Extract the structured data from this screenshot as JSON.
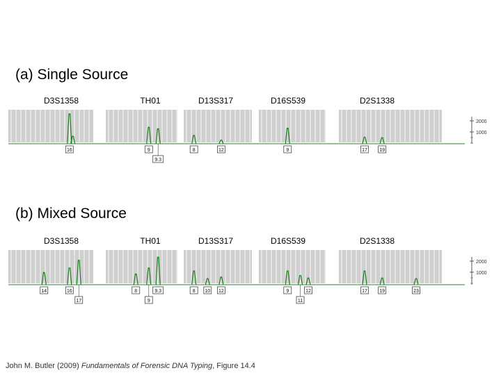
{
  "footer": {
    "author": "John M. Butler (2009) ",
    "book": "Fundamentals of Forensic DNA Typing",
    "fig": ", Figure 14.4"
  },
  "chart_data": [
    {
      "type": "electropherogram",
      "title": "(a) Single Source",
      "y_ticks": [
        "2000",
        "1000"
      ],
      "loci": [
        {
          "name": "D3S1358",
          "genotype": "16, 16",
          "peaks": [
            {
              "x": 0.72,
              "h": 1.0
            },
            {
              "x": 0.76,
              "h": 0.25
            }
          ],
          "labels": [
            {
              "text": "16",
              "x": 0.72,
              "row": 0
            }
          ]
        },
        {
          "name": "TH01",
          "genotype": "9, 9.3",
          "peaks": [
            {
              "x": 0.6,
              "h": 0.55
            },
            {
              "x": 0.73,
              "h": 0.5
            }
          ],
          "labels": [
            {
              "text": "9",
              "x": 0.6,
              "row": 0
            },
            {
              "text": "9.3",
              "x": 0.73,
              "row": 1
            }
          ]
        },
        {
          "name": "D13S317",
          "genotype": "8, 12",
          "peaks": [
            {
              "x": 0.15,
              "h": 0.28
            },
            {
              "x": 0.55,
              "h": 0.12
            }
          ],
          "labels": [
            {
              "text": "8",
              "x": 0.15,
              "row": 0
            },
            {
              "text": "12",
              "x": 0.55,
              "row": 0
            }
          ]
        },
        {
          "name": "D16S539",
          "genotype": "9, 9",
          "peaks": [
            {
              "x": 0.43,
              "h": 0.52
            }
          ],
          "labels": [
            {
              "text": "9",
              "x": 0.43,
              "row": 0
            }
          ]
        },
        {
          "name": "D2S1338",
          "genotype": "17, 19",
          "peaks": [
            {
              "x": 0.25,
              "h": 0.22
            },
            {
              "x": 0.42,
              "h": 0.2
            }
          ],
          "labels": [
            {
              "text": "17",
              "x": 0.25,
              "row": 0
            },
            {
              "text": "19",
              "x": 0.42,
              "row": 0
            }
          ]
        }
      ]
    },
    {
      "type": "electropherogram",
      "title": "(b) Mixed Source",
      "y_ticks": [
        "2000",
        "1000"
      ],
      "loci": [
        {
          "name": "D3S1358",
          "genotype": "",
          "peaks": [
            {
              "x": 0.42,
              "h": 0.4
            },
            {
              "x": 0.72,
              "h": 0.55
            },
            {
              "x": 0.83,
              "h": 0.8
            }
          ],
          "labels": [
            {
              "text": "14",
              "x": 0.42,
              "row": 0
            },
            {
              "text": "16",
              "x": 0.72,
              "row": 0
            },
            {
              "text": "17",
              "x": 0.83,
              "row": 1
            }
          ]
        },
        {
          "name": "TH01",
          "genotype": "",
          "peaks": [
            {
              "x": 0.42,
              "h": 0.35
            },
            {
              "x": 0.6,
              "h": 0.55
            },
            {
              "x": 0.73,
              "h": 0.9
            }
          ],
          "labels": [
            {
              "text": "8",
              "x": 0.42,
              "row": 0
            },
            {
              "text": "9.3",
              "x": 0.73,
              "row": 0
            },
            {
              "text": "9",
              "x": 0.6,
              "row": 1
            }
          ]
        },
        {
          "name": "D13S317",
          "genotype": "",
          "peaks": [
            {
              "x": 0.15,
              "h": 0.45
            },
            {
              "x": 0.35,
              "h": 0.2
            },
            {
              "x": 0.55,
              "h": 0.25
            }
          ],
          "labels": [
            {
              "text": "8",
              "x": 0.15,
              "row": 0
            },
            {
              "text": "10",
              "x": 0.35,
              "row": 0
            },
            {
              "text": "12",
              "x": 0.55,
              "row": 0
            }
          ]
        },
        {
          "name": "D16S539",
          "genotype": "",
          "peaks": [
            {
              "x": 0.43,
              "h": 0.45
            },
            {
              "x": 0.62,
              "h": 0.3
            },
            {
              "x": 0.74,
              "h": 0.22
            }
          ],
          "labels": [
            {
              "text": "9",
              "x": 0.43,
              "row": 0
            },
            {
              "text": "12",
              "x": 0.74,
              "row": 0
            },
            {
              "text": "11",
              "x": 0.62,
              "row": 1
            }
          ]
        },
        {
          "name": "D2S1338",
          "genotype": "",
          "peaks": [
            {
              "x": 0.25,
              "h": 0.45
            },
            {
              "x": 0.42,
              "h": 0.22
            },
            {
              "x": 0.75,
              "h": 0.2
            }
          ],
          "labels": [
            {
              "text": "17",
              "x": 0.25,
              "row": 0
            },
            {
              "text": "19",
              "x": 0.42,
              "row": 0
            },
            {
              "text": "23",
              "x": 0.75,
              "row": 0
            }
          ]
        }
      ]
    }
  ]
}
